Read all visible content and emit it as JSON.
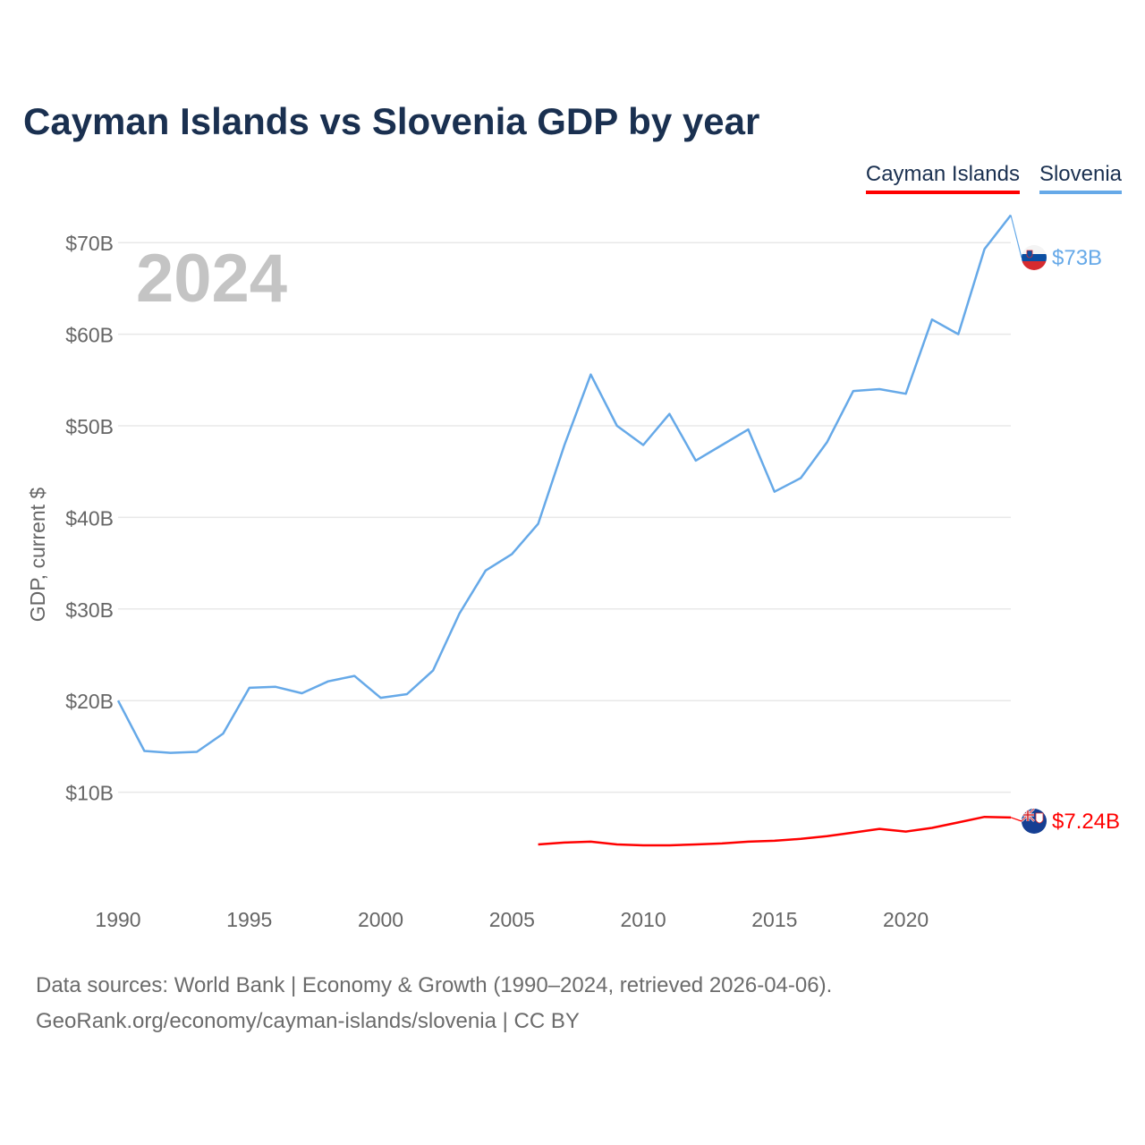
{
  "title": "Cayman Islands vs Slovenia GDP by year",
  "year_label": "2024",
  "legend": [
    {
      "name": "Cayman Islands",
      "color": "#ff0000"
    },
    {
      "name": "Slovenia",
      "color": "#66a9e8"
    }
  ],
  "footer": {
    "line1": "Data sources: World Bank | Economy & Growth (1990–2024, retrieved 2026-04-06).",
    "line2": "GeoRank.org/economy/cayman-islands/slovenia | CC BY"
  },
  "chart_data": {
    "type": "line",
    "title": "Cayman Islands vs Slovenia GDP by year",
    "ylabel": "GDP, current $",
    "xlabel": "",
    "xlim": [
      1990,
      2024
    ],
    "ylim": [
      0,
      75
    ],
    "y_unit": "billion USD",
    "x_ticks": [
      1990,
      1995,
      2000,
      2005,
      2010,
      2015,
      2020
    ],
    "y_ticks": [
      {
        "value": 10,
        "label": "$10B"
      },
      {
        "value": 20,
        "label": "$20B"
      },
      {
        "value": 30,
        "label": "$30B"
      },
      {
        "value": 40,
        "label": "$40B"
      },
      {
        "value": 50,
        "label": "$50B"
      },
      {
        "value": 60,
        "label": "$60B"
      },
      {
        "value": 70,
        "label": "$70B"
      }
    ],
    "grid": true,
    "legend_position": "top-right",
    "series": [
      {
        "name": "Slovenia",
        "color": "#66a9e8",
        "end_label": "$73B",
        "flag": "slovenia-flag",
        "x": [
          1990,
          1991,
          1992,
          1993,
          1994,
          1995,
          1996,
          1997,
          1998,
          1999,
          2000,
          2001,
          2002,
          2003,
          2004,
          2005,
          2006,
          2007,
          2008,
          2009,
          2010,
          2011,
          2012,
          2013,
          2014,
          2015,
          2016,
          2017,
          2018,
          2019,
          2020,
          2021,
          2022,
          2023,
          2024
        ],
        "y": [
          20.0,
          14.5,
          14.3,
          14.4,
          16.4,
          21.4,
          21.5,
          20.8,
          22.1,
          22.7,
          20.3,
          20.7,
          23.3,
          29.5,
          34.2,
          36.0,
          39.3,
          47.9,
          55.6,
          50.0,
          47.9,
          51.3,
          46.2,
          47.9,
          49.6,
          42.8,
          44.3,
          48.2,
          53.8,
          54.0,
          53.5,
          61.6,
          60.0,
          69.3,
          73.0
        ]
      },
      {
        "name": "Cayman Islands",
        "color": "#ff0000",
        "end_label": "$7.24B",
        "flag": "cayman-islands-flag",
        "x": [
          2006,
          2007,
          2008,
          2009,
          2010,
          2011,
          2012,
          2013,
          2014,
          2015,
          2016,
          2017,
          2018,
          2019,
          2020,
          2021,
          2022,
          2023,
          2024
        ],
        "y": [
          4.3,
          4.5,
          4.6,
          4.3,
          4.2,
          4.2,
          4.3,
          4.4,
          4.6,
          4.7,
          4.9,
          5.2,
          5.6,
          6.0,
          5.7,
          6.1,
          6.7,
          7.3,
          7.24
        ]
      }
    ]
  }
}
